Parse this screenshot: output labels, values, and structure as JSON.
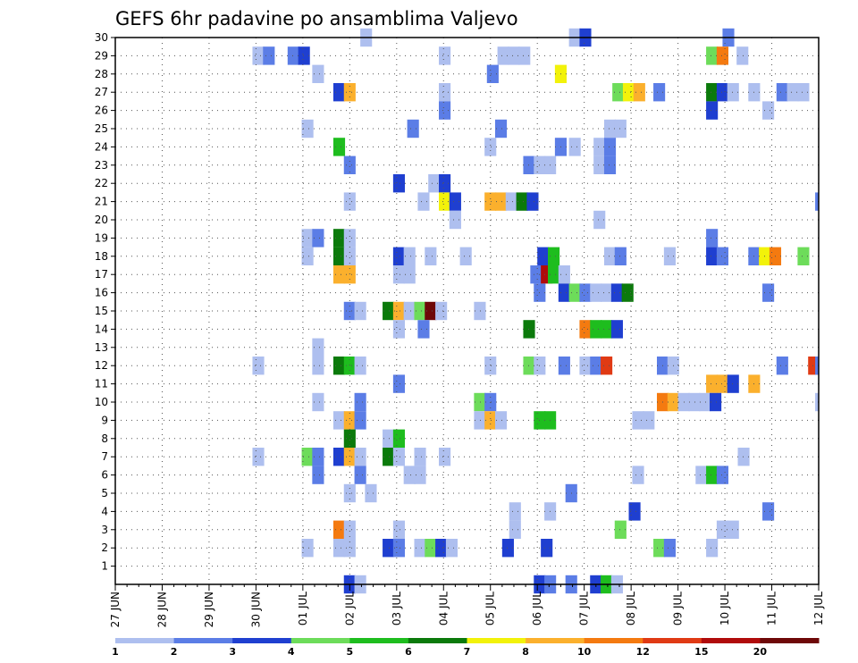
{
  "chart_data": {
    "type": "heatmap",
    "title": "GEFS 6hr padavine po ansamblima Valjevo",
    "y_categories": [
      "1",
      "2",
      "3",
      "4",
      "5",
      "6",
      "7",
      "8",
      "9",
      "10",
      "11",
      "12",
      "13",
      "14",
      "15",
      "16",
      "17",
      "18",
      "19",
      "20",
      "21",
      "22",
      "23",
      "24",
      "25",
      "26",
      "27",
      "28",
      "29",
      "30"
    ],
    "x_tick_labels": [
      "27 JUN",
      "28 JUN",
      "29 JUN",
      "30 JUN",
      "01 JUL",
      "02 JUL",
      "03 JUL",
      "04 JUL",
      "05 JUL",
      "06 JUL",
      "07 JUL",
      "08 JUL",
      "09 JUL",
      "10 JUL",
      "11 JUL",
      "12 JUL"
    ],
    "x_unit": "6h steps",
    "x_range_steps": [
      0,
      60
    ],
    "grid": true,
    "legend": {
      "position": "bottom",
      "labels": [
        "1",
        "2",
        "3",
        "4",
        "5",
        "6",
        "7",
        "8",
        "10",
        "12",
        "15",
        "20"
      ],
      "colors": [
        "#aebfef",
        "#5b7de6",
        "#1f3fd0",
        "#6ddc5a",
        "#1ebd1e",
        "#0b7a0b",
        "#f2f20a",
        "#fbb02d",
        "#f47a10",
        "#e03a14",
        "#b00b0b",
        "#6e0808"
      ]
    },
    "cells": [
      [
        20.9,
        30,
        0
      ],
      [
        38.7,
        30,
        0
      ],
      [
        39.6,
        30,
        2
      ],
      [
        51.8,
        30,
        1
      ],
      [
        11.7,
        29,
        0
      ],
      [
        12.6,
        29,
        1
      ],
      [
        14.7,
        29,
        1
      ],
      [
        15.6,
        29,
        2
      ],
      [
        27.6,
        29,
        0
      ],
      [
        32.6,
        29,
        0
      ],
      [
        33.5,
        29,
        0
      ],
      [
        34.4,
        29,
        0
      ],
      [
        50.4,
        29,
        3
      ],
      [
        51.3,
        29,
        8
      ],
      [
        53.0,
        29,
        0
      ],
      [
        16.8,
        28,
        0
      ],
      [
        31.7,
        28,
        1
      ],
      [
        37.5,
        28,
        6
      ],
      [
        18.6,
        27,
        2
      ],
      [
        19.5,
        27,
        7
      ],
      [
        27.6,
        27,
        0
      ],
      [
        42.4,
        27,
        3
      ],
      [
        43.3,
        27,
        6
      ],
      [
        44.2,
        27,
        7
      ],
      [
        45.9,
        27,
        1
      ],
      [
        50.4,
        27,
        5
      ],
      [
        51.3,
        27,
        2
      ],
      [
        52.2,
        27,
        0
      ],
      [
        54.0,
        27,
        0
      ],
      [
        56.4,
        27,
        1
      ],
      [
        57.3,
        27,
        0
      ],
      [
        58.2,
        27,
        0
      ],
      [
        27.6,
        26,
        1
      ],
      [
        50.4,
        26,
        2
      ],
      [
        55.2,
        26,
        0
      ],
      [
        15.9,
        25,
        0
      ],
      [
        24.9,
        25,
        1
      ],
      [
        32.4,
        25,
        1
      ],
      [
        41.7,
        25,
        0
      ],
      [
        42.6,
        25,
        0
      ],
      [
        18.6,
        24,
        4
      ],
      [
        31.5,
        24,
        0
      ],
      [
        37.5,
        24,
        1
      ],
      [
        38.7,
        24,
        0
      ],
      [
        40.8,
        24,
        0
      ],
      [
        41.7,
        24,
        1
      ],
      [
        19.5,
        23,
        1
      ],
      [
        34.8,
        23,
        1
      ],
      [
        35.7,
        23,
        0
      ],
      [
        36.6,
        23,
        0
      ],
      [
        40.8,
        23,
        0
      ],
      [
        41.7,
        23,
        1
      ],
      [
        23.7,
        22,
        2
      ],
      [
        26.7,
        22,
        0
      ],
      [
        27.6,
        22,
        2
      ],
      [
        19.5,
        21,
        0
      ],
      [
        25.8,
        21,
        0
      ],
      [
        27.6,
        21,
        6
      ],
      [
        28.5,
        21,
        2
      ],
      [
        31.5,
        21,
        7
      ],
      [
        32.4,
        21,
        7
      ],
      [
        33.3,
        21,
        0
      ],
      [
        34.2,
        21,
        5
      ],
      [
        35.1,
        21,
        2
      ],
      [
        59.7,
        21,
        1
      ],
      [
        28.5,
        20,
        0
      ],
      [
        40.8,
        20,
        0
      ],
      [
        15.9,
        19,
        0
      ],
      [
        16.8,
        19,
        1
      ],
      [
        18.6,
        19,
        5
      ],
      [
        19.5,
        19,
        0
      ],
      [
        50.4,
        19,
        1
      ],
      [
        15.9,
        18,
        0
      ],
      [
        18.6,
        18,
        5
      ],
      [
        19.5,
        18,
        0
      ],
      [
        23.7,
        18,
        2
      ],
      [
        24.6,
        18,
        0
      ],
      [
        26.4,
        18,
        0
      ],
      [
        29.4,
        18,
        0
      ],
      [
        36.0,
        18,
        2
      ],
      [
        36.9,
        18,
        4
      ],
      [
        41.7,
        18,
        0
      ],
      [
        42.6,
        18,
        1
      ],
      [
        46.8,
        18,
        0
      ],
      [
        50.4,
        18,
        2
      ],
      [
        51.3,
        18,
        1
      ],
      [
        54.0,
        18,
        1
      ],
      [
        54.9,
        18,
        6
      ],
      [
        55.8,
        18,
        8
      ],
      [
        58.2,
        18,
        3
      ],
      [
        18.6,
        17,
        7
      ],
      [
        19.5,
        17,
        7
      ],
      [
        23.7,
        17,
        0
      ],
      [
        24.6,
        17,
        0
      ],
      [
        35.4,
        17,
        1
      ],
      [
        36.3,
        17,
        10
      ],
      [
        36.9,
        17,
        4
      ],
      [
        37.8,
        17,
        0
      ],
      [
        35.7,
        16,
        1
      ],
      [
        37.8,
        16,
        2
      ],
      [
        38.7,
        16,
        3
      ],
      [
        39.6,
        16,
        1
      ],
      [
        40.5,
        16,
        0
      ],
      [
        41.4,
        16,
        0
      ],
      [
        42.3,
        16,
        2
      ],
      [
        43.2,
        16,
        5
      ],
      [
        55.2,
        16,
        1
      ],
      [
        19.5,
        15,
        1
      ],
      [
        20.4,
        15,
        0
      ],
      [
        22.8,
        15,
        5
      ],
      [
        23.7,
        15,
        7
      ],
      [
        24.6,
        15,
        0
      ],
      [
        25.5,
        15,
        3
      ],
      [
        26.4,
        15,
        11
      ],
      [
        27.3,
        15,
        0
      ],
      [
        30.6,
        15,
        0
      ],
      [
        23.7,
        14,
        0
      ],
      [
        25.8,
        14,
        1
      ],
      [
        34.8,
        14,
        5
      ],
      [
        39.6,
        14,
        8
      ],
      [
        40.5,
        14,
        4
      ],
      [
        41.4,
        14,
        4
      ],
      [
        42.3,
        14,
        2
      ],
      [
        16.8,
        13,
        0
      ],
      [
        11.7,
        12,
        0
      ],
      [
        16.8,
        12,
        0
      ],
      [
        18.6,
        12,
        5
      ],
      [
        19.5,
        12,
        4
      ],
      [
        20.4,
        12,
        0
      ],
      [
        31.5,
        12,
        0
      ],
      [
        34.8,
        12,
        3
      ],
      [
        35.7,
        12,
        0
      ],
      [
        37.8,
        12,
        1
      ],
      [
        39.6,
        12,
        0
      ],
      [
        40.5,
        12,
        1
      ],
      [
        41.4,
        12,
        9
      ],
      [
        46.2,
        12,
        1
      ],
      [
        47.1,
        12,
        0
      ],
      [
        56.4,
        12,
        1
      ],
      [
        59.1,
        12,
        9
      ],
      [
        59.7,
        12,
        1
      ],
      [
        23.7,
        11,
        1
      ],
      [
        50.4,
        11,
        7
      ],
      [
        51.3,
        11,
        7
      ],
      [
        52.2,
        11,
        2
      ],
      [
        54.0,
        11,
        7
      ],
      [
        16.8,
        10,
        0
      ],
      [
        20.4,
        10,
        1
      ],
      [
        30.6,
        10,
        3
      ],
      [
        31.5,
        10,
        1
      ],
      [
        46.2,
        10,
        8
      ],
      [
        47.1,
        10,
        7
      ],
      [
        48.0,
        10,
        0
      ],
      [
        48.9,
        10,
        0
      ],
      [
        49.8,
        10,
        0
      ],
      [
        50.7,
        10,
        2
      ],
      [
        59.7,
        10,
        0
      ],
      [
        18.6,
        9,
        0
      ],
      [
        19.5,
        9,
        7
      ],
      [
        20.4,
        9,
        1
      ],
      [
        30.6,
        9,
        0
      ],
      [
        31.5,
        9,
        7
      ],
      [
        32.4,
        9,
        0
      ],
      [
        35.7,
        9,
        4
      ],
      [
        36.6,
        9,
        4
      ],
      [
        44.1,
        9,
        0
      ],
      [
        45.0,
        9,
        0
      ],
      [
        19.5,
        8,
        5
      ],
      [
        22.8,
        8,
        0
      ],
      [
        23.7,
        8,
        4
      ],
      [
        11.7,
        7,
        0
      ],
      [
        15.9,
        7,
        3
      ],
      [
        16.8,
        7,
        1
      ],
      [
        18.6,
        7,
        2
      ],
      [
        19.5,
        7,
        7
      ],
      [
        20.4,
        7,
        0
      ],
      [
        22.8,
        7,
        5
      ],
      [
        23.7,
        7,
        0
      ],
      [
        25.5,
        7,
        0
      ],
      [
        27.6,
        7,
        0
      ],
      [
        53.1,
        7,
        0
      ],
      [
        16.8,
        6,
        1
      ],
      [
        20.4,
        6,
        1
      ],
      [
        24.6,
        6,
        0
      ],
      [
        25.5,
        6,
        0
      ],
      [
        44.1,
        6,
        0
      ],
      [
        49.5,
        6,
        0
      ],
      [
        50.4,
        6,
        4
      ],
      [
        51.3,
        6,
        1
      ],
      [
        19.5,
        5,
        0
      ],
      [
        21.3,
        5,
        0
      ],
      [
        38.4,
        5,
        1
      ],
      [
        33.6,
        4,
        0
      ],
      [
        36.6,
        4,
        0
      ],
      [
        43.8,
        4,
        2
      ],
      [
        55.2,
        4,
        1
      ],
      [
        18.6,
        3,
        8
      ],
      [
        19.5,
        3,
        0
      ],
      [
        23.7,
        3,
        0
      ],
      [
        33.6,
        3,
        0
      ],
      [
        42.6,
        3,
        3
      ],
      [
        51.3,
        3,
        0
      ],
      [
        52.2,
        3,
        0
      ],
      [
        15.9,
        2,
        0
      ],
      [
        18.6,
        2,
        0
      ],
      [
        19.5,
        2,
        0
      ],
      [
        22.8,
        2,
        2
      ],
      [
        23.7,
        2,
        1
      ],
      [
        25.5,
        2,
        0
      ],
      [
        26.4,
        2,
        3
      ],
      [
        27.3,
        2,
        2
      ],
      [
        28.2,
        2,
        0
      ],
      [
        33.0,
        2,
        2
      ],
      [
        36.3,
        2,
        2
      ],
      [
        45.9,
        2,
        3
      ],
      [
        46.8,
        2,
        1
      ],
      [
        50.4,
        2,
        0
      ],
      [
        19.5,
        0,
        2
      ],
      [
        20.4,
        0,
        0
      ],
      [
        35.7,
        0,
        2
      ],
      [
        36.6,
        0,
        1
      ],
      [
        38.4,
        0,
        1
      ],
      [
        40.5,
        0,
        2
      ],
      [
        41.4,
        0,
        4
      ],
      [
        42.3,
        0,
        0
      ]
    ]
  }
}
